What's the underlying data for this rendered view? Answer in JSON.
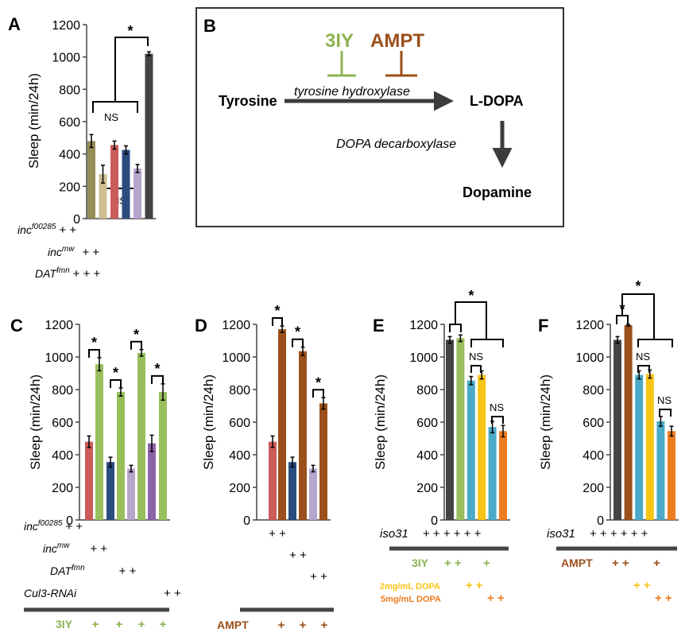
{
  "panel_a": {
    "letter": "A",
    "sig": "*",
    "ns1": "NS",
    "ns2": "NS",
    "geno_labels": [
      {
        "main": "inc",
        "sup": "f00285",
        "marks": "+ +"
      },
      {
        "main": "inc",
        "sup": "mw",
        "marks": "+ +"
      },
      {
        "main": "DAT",
        "sup": "fmn",
        "marks": "+ + +"
      }
    ]
  },
  "panel_b": {
    "letter": "B",
    "inhibitor1": "3IY",
    "inhibitor2": "AMPT",
    "enzyme1": "tyrosine hydroxylase",
    "enzyme2": "DOPA decarboxylase",
    "substrate": "Tyrosine",
    "intermediate": "L-DOPA",
    "product": "Dopamine",
    "colors": {
      "c3iy": "#8cb453",
      "campt": "#9b4f1a",
      "arrow": "#3c3c3c"
    }
  },
  "panel_c": {
    "letter": "C",
    "geno_labels": [
      {
        "main": "inc",
        "sup": "f00285",
        "marks": "+ +"
      },
      {
        "main": "inc",
        "sup": "mw",
        "marks": "+ +"
      },
      {
        "main": "DAT",
        "sup": "fmn",
        "marks": "+ +"
      },
      {
        "main": "Cul3-RNAi",
        "sup": "",
        "marks": "+ +"
      }
    ],
    "drug": "3IY",
    "drug_marks": [
      "+",
      "+",
      "+",
      "+"
    ]
  },
  "panel_d": {
    "letter": "D",
    "geno_marks": [
      "+ +",
      "+ +",
      "+ +"
    ],
    "drug": "AMPT",
    "drug_marks": [
      "+",
      "+",
      "+"
    ]
  },
  "panel_e": {
    "letter": "E",
    "strain": "iso31",
    "strain_marks": "+ + + + + +",
    "drug": "3IY",
    "drug_marks": [
      "+ +",
      "+"
    ],
    "dopa1": "2mg/mL DOPA",
    "dopa1_marks": "+ +",
    "dopa2": "5mg/mL DOPA",
    "dopa2_marks": "+ +",
    "ns1": "NS",
    "ns2": "NS"
  },
  "panel_f": {
    "letter": "F",
    "strain": "iso31",
    "strain_marks": "+ + + + + +",
    "drug": "AMPT",
    "drug_marks": [
      "+ +",
      "+"
    ],
    "dopa_marks1": "+ +",
    "dopa_marks2": "+ +",
    "ns1": "NS",
    "ns2": "NS"
  },
  "chart_data": [
    {
      "panel": "A",
      "type": "bar",
      "ylabel": "Sleep (min/24h)",
      "ylim": [
        0,
        1200
      ],
      "yticks": [
        0,
        200,
        400,
        600,
        800,
        1000,
        1200
      ],
      "values": [
        480,
        275,
        455,
        425,
        310,
        1020
      ],
      "errors": [
        40,
        55,
        25,
        25,
        25,
        12
      ],
      "colors": [
        "#958c56",
        "#cdbf93",
        "#cc5b5b",
        "#2a4c7f",
        "#b7a6cc",
        "#444444"
      ]
    },
    {
      "panel": "C",
      "type": "bar",
      "ylabel": "Sleep (min/24h)",
      "ylim": [
        0,
        1200
      ],
      "yticks": [
        0,
        200,
        400,
        600,
        800,
        1000,
        1200
      ],
      "values": [
        480,
        955,
        355,
        785,
        315,
        1025,
        470,
        785
      ],
      "errors": [
        35,
        40,
        30,
        25,
        20,
        20,
        50,
        50
      ],
      "colors": [
        "#cc5b5b",
        "#98bf5c",
        "#2a4c7f",
        "#98bf5c",
        "#b7a6cc",
        "#98bf5c",
        "#8a64a8",
        "#98bf5c"
      ]
    },
    {
      "panel": "D",
      "type": "bar",
      "ylabel": "Sleep (min/24h)",
      "ylim": [
        0,
        1200
      ],
      "yticks": [
        0,
        200,
        400,
        600,
        800,
        1000,
        1200
      ],
      "values": [
        480,
        1170,
        355,
        1035,
        315,
        715
      ],
      "errors": [
        35,
        20,
        30,
        25,
        20,
        35
      ],
      "colors": [
        "#cc5b5b",
        "#9b4f1a",
        "#2a4c7f",
        "#9b4f1a",
        "#b7a6cc",
        "#9b4f1a"
      ]
    },
    {
      "panel": "E",
      "type": "bar",
      "ylabel": "Sleep (min/24h)",
      "ylim": [
        0,
        1200
      ],
      "yticks": [
        0,
        200,
        400,
        600,
        800,
        1000,
        1200
      ],
      "values": [
        1105,
        1115,
        855,
        890,
        570,
        545
      ],
      "errors": [
        20,
        20,
        25,
        25,
        35,
        35
      ],
      "colors": [
        "#444444",
        "#98bf5c",
        "#4aaac8",
        "#f9c414",
        "#4aaac8",
        "#ee7c1f"
      ]
    },
    {
      "panel": "F",
      "type": "bar",
      "ylabel": "Sleep (min/24h)",
      "ylim": [
        0,
        1200
      ],
      "yticks": [
        0,
        200,
        400,
        600,
        800,
        1000,
        1200
      ],
      "values": [
        1105,
        1195,
        890,
        895,
        605,
        545
      ],
      "errors": [
        20,
        5,
        25,
        25,
        30,
        30
      ],
      "colors": [
        "#444444",
        "#9b4f1a",
        "#4aaac8",
        "#f9c414",
        "#4aaac8",
        "#ee7c1f"
      ]
    }
  ]
}
